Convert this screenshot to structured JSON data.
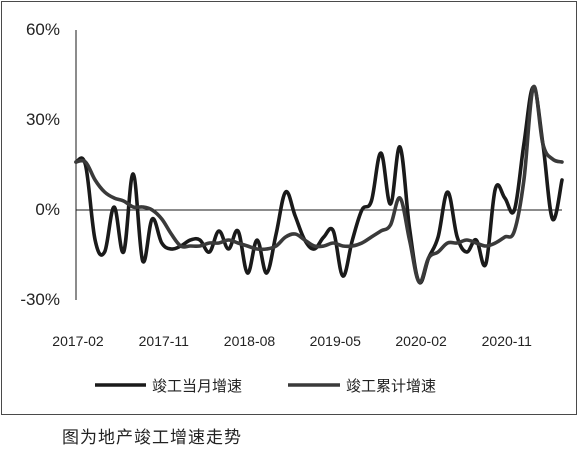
{
  "chart_data": {
    "type": "line",
    "title": "",
    "xlabel": "",
    "ylabel": "",
    "ylim": [
      -30,
      60
    ],
    "y_ticks": [
      "60%",
      "30%",
      "0%",
      "-30%"
    ],
    "y_tick_values": [
      60,
      30,
      0,
      -30
    ],
    "x_tick_labels": [
      "2017-02",
      "2017-11",
      "2018-08",
      "2019-05",
      "2020-02",
      "2020-11"
    ],
    "x_tick_index": [
      0,
      9,
      18,
      27,
      36,
      45
    ],
    "x": [
      "2017-02",
      "2017-03",
      "2017-04",
      "2017-05",
      "2017-06",
      "2017-07",
      "2017-08",
      "2017-09",
      "2017-10",
      "2017-11",
      "2017-12",
      "2018-01",
      "2018-02",
      "2018-03",
      "2018-04",
      "2018-05",
      "2018-06",
      "2018-07",
      "2018-08",
      "2018-09",
      "2018-10",
      "2018-11",
      "2018-12",
      "2019-01",
      "2019-02",
      "2019-03",
      "2019-04",
      "2019-05",
      "2019-06",
      "2019-07",
      "2019-08",
      "2019-09",
      "2019-10",
      "2019-11",
      "2019-12",
      "2020-01",
      "2020-02",
      "2020-03",
      "2020-04",
      "2020-05",
      "2020-06",
      "2020-07",
      "2020-08",
      "2020-09",
      "2020-10",
      "2020-11",
      "2020-12",
      "2021-01",
      "2021-02",
      "2021-03",
      "2021-04",
      "2021-05"
    ],
    "grid": false,
    "legend_position": "bottom",
    "series": [
      {
        "name": "竣工当月增速",
        "color": "#1a1a1a",
        "values": [
          16,
          15,
          -10,
          -14,
          1,
          -14,
          12,
          -17,
          -3,
          -11,
          -13,
          -12,
          -10,
          -10,
          -14,
          -7,
          -13,
          -7,
          -21,
          -10,
          -21,
          -8,
          6,
          -2,
          -10,
          -13,
          -9,
          -7,
          -22,
          -10,
          0,
          3,
          19,
          2,
          21,
          -6,
          -24,
          -16,
          -9,
          6,
          -9,
          -14,
          -10,
          -18,
          7,
          4,
          0,
          22,
          41,
          22,
          -3,
          10
        ]
      },
      {
        "name": "竣工累计增速",
        "color": "#3a3a3a",
        "values": [
          16,
          16,
          10,
          6,
          4,
          3,
          1,
          1,
          0,
          -3,
          -8,
          -12,
          -12,
          -12,
          -11,
          -11,
          -10,
          -11,
          -12,
          -13,
          -13,
          -12,
          -9,
          -8,
          -10,
          -12,
          -12,
          -11,
          -12,
          -12,
          -11,
          -9,
          -7,
          -5,
          4,
          -10,
          -24,
          -16,
          -14,
          -11,
          -11,
          -10,
          -11,
          -12,
          -11,
          -9,
          -7,
          10,
          41,
          22,
          17,
          16
        ]
      }
    ]
  },
  "caption": "图为地产竣工增速走势"
}
